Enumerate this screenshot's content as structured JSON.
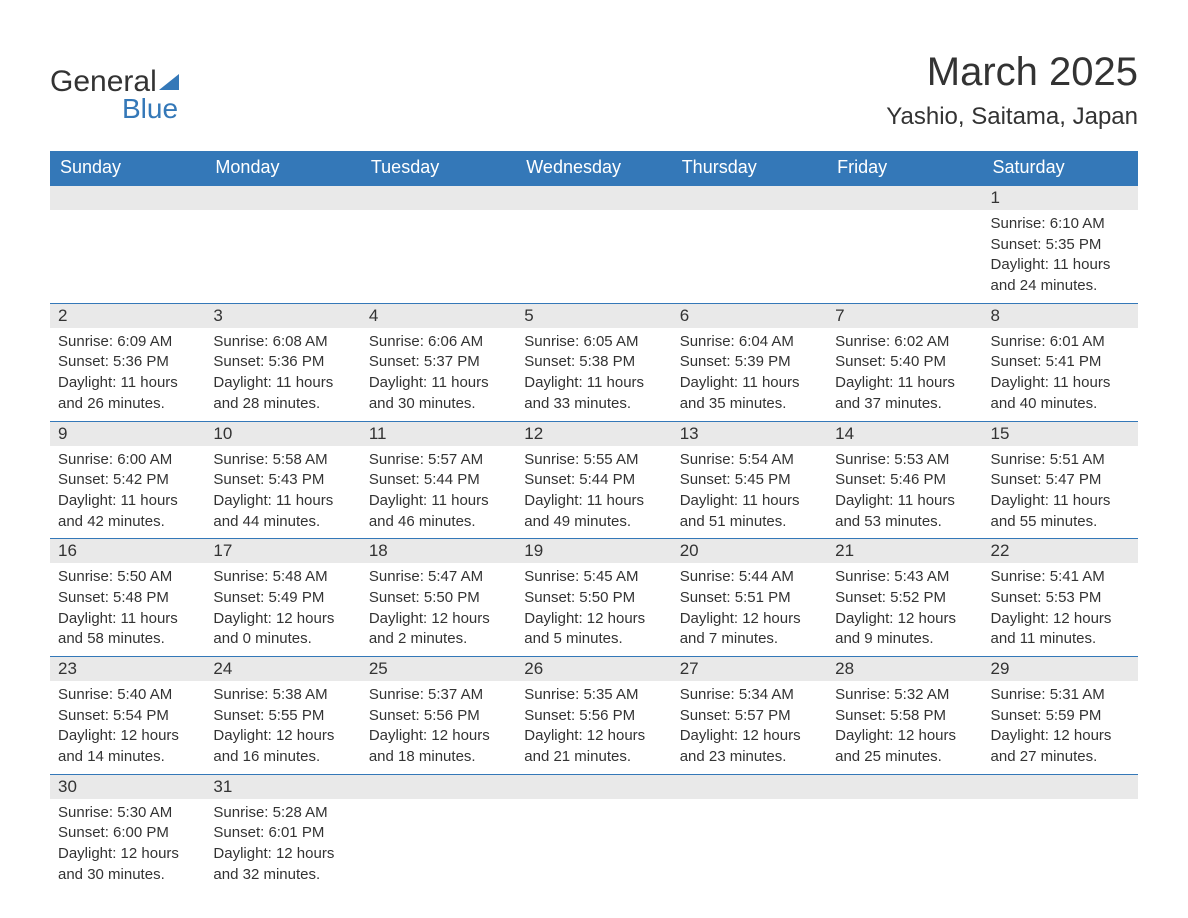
{
  "brand": {
    "word1": "General",
    "word2": "Blue",
    "logo_color": "#3478b8",
    "text_color": "#333333"
  },
  "title": {
    "month_year": "March 2025",
    "location": "Yashio, Saitama, Japan"
  },
  "style": {
    "header_bg": "#3478b8",
    "header_text": "#ffffff",
    "row_border": "#3478b8",
    "daynum_bg": "#e9e9e9",
    "body_text": "#333333",
    "header_fontsize": 18,
    "daynum_fontsize": 17,
    "body_fontsize": 15,
    "title_fontsize": 40,
    "location_fontsize": 24
  },
  "weekdays": [
    "Sunday",
    "Monday",
    "Tuesday",
    "Wednesday",
    "Thursday",
    "Friday",
    "Saturday"
  ],
  "weeks": [
    [
      null,
      null,
      null,
      null,
      null,
      null,
      {
        "d": "1",
        "sunrise": "Sunrise: 6:10 AM",
        "sunset": "Sunset: 5:35 PM",
        "dl1": "Daylight: 11 hours",
        "dl2": "and 24 minutes."
      }
    ],
    [
      {
        "d": "2",
        "sunrise": "Sunrise: 6:09 AM",
        "sunset": "Sunset: 5:36 PM",
        "dl1": "Daylight: 11 hours",
        "dl2": "and 26 minutes."
      },
      {
        "d": "3",
        "sunrise": "Sunrise: 6:08 AM",
        "sunset": "Sunset: 5:36 PM",
        "dl1": "Daylight: 11 hours",
        "dl2": "and 28 minutes."
      },
      {
        "d": "4",
        "sunrise": "Sunrise: 6:06 AM",
        "sunset": "Sunset: 5:37 PM",
        "dl1": "Daylight: 11 hours",
        "dl2": "and 30 minutes."
      },
      {
        "d": "5",
        "sunrise": "Sunrise: 6:05 AM",
        "sunset": "Sunset: 5:38 PM",
        "dl1": "Daylight: 11 hours",
        "dl2": "and 33 minutes."
      },
      {
        "d": "6",
        "sunrise": "Sunrise: 6:04 AM",
        "sunset": "Sunset: 5:39 PM",
        "dl1": "Daylight: 11 hours",
        "dl2": "and 35 minutes."
      },
      {
        "d": "7",
        "sunrise": "Sunrise: 6:02 AM",
        "sunset": "Sunset: 5:40 PM",
        "dl1": "Daylight: 11 hours",
        "dl2": "and 37 minutes."
      },
      {
        "d": "8",
        "sunrise": "Sunrise: 6:01 AM",
        "sunset": "Sunset: 5:41 PM",
        "dl1": "Daylight: 11 hours",
        "dl2": "and 40 minutes."
      }
    ],
    [
      {
        "d": "9",
        "sunrise": "Sunrise: 6:00 AM",
        "sunset": "Sunset: 5:42 PM",
        "dl1": "Daylight: 11 hours",
        "dl2": "and 42 minutes."
      },
      {
        "d": "10",
        "sunrise": "Sunrise: 5:58 AM",
        "sunset": "Sunset: 5:43 PM",
        "dl1": "Daylight: 11 hours",
        "dl2": "and 44 minutes."
      },
      {
        "d": "11",
        "sunrise": "Sunrise: 5:57 AM",
        "sunset": "Sunset: 5:44 PM",
        "dl1": "Daylight: 11 hours",
        "dl2": "and 46 minutes."
      },
      {
        "d": "12",
        "sunrise": "Sunrise: 5:55 AM",
        "sunset": "Sunset: 5:44 PM",
        "dl1": "Daylight: 11 hours",
        "dl2": "and 49 minutes."
      },
      {
        "d": "13",
        "sunrise": "Sunrise: 5:54 AM",
        "sunset": "Sunset: 5:45 PM",
        "dl1": "Daylight: 11 hours",
        "dl2": "and 51 minutes."
      },
      {
        "d": "14",
        "sunrise": "Sunrise: 5:53 AM",
        "sunset": "Sunset: 5:46 PM",
        "dl1": "Daylight: 11 hours",
        "dl2": "and 53 minutes."
      },
      {
        "d": "15",
        "sunrise": "Sunrise: 5:51 AM",
        "sunset": "Sunset: 5:47 PM",
        "dl1": "Daylight: 11 hours",
        "dl2": "and 55 minutes."
      }
    ],
    [
      {
        "d": "16",
        "sunrise": "Sunrise: 5:50 AM",
        "sunset": "Sunset: 5:48 PM",
        "dl1": "Daylight: 11 hours",
        "dl2": "and 58 minutes."
      },
      {
        "d": "17",
        "sunrise": "Sunrise: 5:48 AM",
        "sunset": "Sunset: 5:49 PM",
        "dl1": "Daylight: 12 hours",
        "dl2": "and 0 minutes."
      },
      {
        "d": "18",
        "sunrise": "Sunrise: 5:47 AM",
        "sunset": "Sunset: 5:50 PM",
        "dl1": "Daylight: 12 hours",
        "dl2": "and 2 minutes."
      },
      {
        "d": "19",
        "sunrise": "Sunrise: 5:45 AM",
        "sunset": "Sunset: 5:50 PM",
        "dl1": "Daylight: 12 hours",
        "dl2": "and 5 minutes."
      },
      {
        "d": "20",
        "sunrise": "Sunrise: 5:44 AM",
        "sunset": "Sunset: 5:51 PM",
        "dl1": "Daylight: 12 hours",
        "dl2": "and 7 minutes."
      },
      {
        "d": "21",
        "sunrise": "Sunrise: 5:43 AM",
        "sunset": "Sunset: 5:52 PM",
        "dl1": "Daylight: 12 hours",
        "dl2": "and 9 minutes."
      },
      {
        "d": "22",
        "sunrise": "Sunrise: 5:41 AM",
        "sunset": "Sunset: 5:53 PM",
        "dl1": "Daylight: 12 hours",
        "dl2": "and 11 minutes."
      }
    ],
    [
      {
        "d": "23",
        "sunrise": "Sunrise: 5:40 AM",
        "sunset": "Sunset: 5:54 PM",
        "dl1": "Daylight: 12 hours",
        "dl2": "and 14 minutes."
      },
      {
        "d": "24",
        "sunrise": "Sunrise: 5:38 AM",
        "sunset": "Sunset: 5:55 PM",
        "dl1": "Daylight: 12 hours",
        "dl2": "and 16 minutes."
      },
      {
        "d": "25",
        "sunrise": "Sunrise: 5:37 AM",
        "sunset": "Sunset: 5:56 PM",
        "dl1": "Daylight: 12 hours",
        "dl2": "and 18 minutes."
      },
      {
        "d": "26",
        "sunrise": "Sunrise: 5:35 AM",
        "sunset": "Sunset: 5:56 PM",
        "dl1": "Daylight: 12 hours",
        "dl2": "and 21 minutes."
      },
      {
        "d": "27",
        "sunrise": "Sunrise: 5:34 AM",
        "sunset": "Sunset: 5:57 PM",
        "dl1": "Daylight: 12 hours",
        "dl2": "and 23 minutes."
      },
      {
        "d": "28",
        "sunrise": "Sunrise: 5:32 AM",
        "sunset": "Sunset: 5:58 PM",
        "dl1": "Daylight: 12 hours",
        "dl2": "and 25 minutes."
      },
      {
        "d": "29",
        "sunrise": "Sunrise: 5:31 AM",
        "sunset": "Sunset: 5:59 PM",
        "dl1": "Daylight: 12 hours",
        "dl2": "and 27 minutes."
      }
    ],
    [
      {
        "d": "30",
        "sunrise": "Sunrise: 5:30 AM",
        "sunset": "Sunset: 6:00 PM",
        "dl1": "Daylight: 12 hours",
        "dl2": "and 30 minutes."
      },
      {
        "d": "31",
        "sunrise": "Sunrise: 5:28 AM",
        "sunset": "Sunset: 6:01 PM",
        "dl1": "Daylight: 12 hours",
        "dl2": "and 32 minutes."
      },
      null,
      null,
      null,
      null,
      null
    ]
  ]
}
